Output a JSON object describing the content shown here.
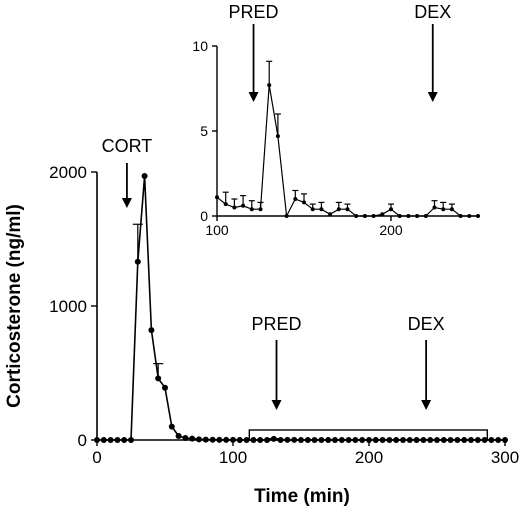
{
  "chart_data": [
    {
      "type": "line",
      "panel": "main",
      "xlabel": "Time (min)",
      "ylabel": "Corticosterone (ng/ml)",
      "xlim": [
        0,
        300
      ],
      "ylim": [
        0,
        2000
      ],
      "xticks": [
        "0",
        "100",
        "200",
        "300"
      ],
      "yticks": [
        "0",
        "1000",
        "2000"
      ],
      "grid": false,
      "series": [
        {
          "x": [
            0,
            5,
            10,
            15,
            20,
            25,
            30,
            35,
            40,
            45,
            50,
            55,
            60,
            65,
            70,
            75,
            80,
            85,
            90,
            95,
            100,
            105,
            110,
            115,
            120,
            125,
            130,
            135,
            140,
            145,
            150,
            155,
            160,
            165,
            170,
            175,
            180,
            185,
            190,
            195,
            200,
            205,
            210,
            215,
            220,
            225,
            230,
            235,
            240,
            245,
            250,
            255,
            260,
            265,
            270,
            275,
            280,
            285,
            290,
            295,
            300
          ],
          "y": [
            0,
            0,
            0,
            0,
            0,
            0,
            1330,
            1970,
            820,
            460,
            390,
            100,
            30,
            15,
            10,
            5,
            3,
            2,
            1,
            1,
            1,
            0,
            0,
            0,
            0,
            0,
            8,
            0,
            1,
            1,
            0,
            0,
            0,
            0,
            0,
            0,
            0,
            0,
            0,
            0,
            0,
            0,
            0,
            0,
            0,
            0,
            0,
            0,
            0,
            0,
            0,
            0,
            0,
            0,
            0,
            0,
            0,
            0,
            0,
            0,
            0
          ],
          "error": [
            0,
            0,
            0,
            0,
            0,
            0,
            280,
            0,
            0,
            110,
            0,
            0,
            0,
            0,
            0,
            0,
            0,
            0,
            0,
            0,
            0,
            0,
            0,
            0,
            0,
            0,
            2,
            0,
            0,
            0,
            0,
            0,
            0,
            0,
            0,
            0,
            0,
            0,
            0,
            0,
            0,
            0,
            0,
            0,
            0,
            0,
            0,
            0,
            0,
            0,
            0,
            0,
            0,
            0,
            0,
            0,
            0,
            0,
            0,
            0,
            0
          ]
        }
      ],
      "annotations": [
        {
          "label": "CORT",
          "x": 22
        },
        {
          "label": "PRED",
          "x": 132
        },
        {
          "label": "DEX",
          "x": 242
        }
      ]
    },
    {
      "type": "line",
      "panel": "inset",
      "xlim": [
        100,
        250
      ],
      "ylim": [
        0,
        10
      ],
      "xticks": [
        "100",
        "200"
      ],
      "yticks": [
        "0",
        "5",
        "10"
      ],
      "series": [
        {
          "x": [
            100,
            105,
            110,
            115,
            120,
            125,
            130,
            135,
            140,
            145,
            150,
            155,
            160,
            165,
            170,
            175,
            180,
            185,
            190,
            195,
            200,
            205,
            210,
            215,
            220,
            225,
            230,
            235,
            240,
            245,
            250
          ],
          "y": [
            1.1,
            0.7,
            0.5,
            0.6,
            0.4,
            0.4,
            7.7,
            4.7,
            0,
            1.0,
            0.8,
            0.4,
            0.4,
            0.1,
            0.4,
            0.4,
            0,
            0,
            0,
            0.1,
            0.4,
            0,
            0,
            0,
            0,
            0.5,
            0.4,
            0.4,
            0,
            0,
            0
          ],
          "error": [
            0,
            0.7,
            0.5,
            0.6,
            0.5,
            0.4,
            1.4,
            1.3,
            0,
            0.5,
            0.5,
            0.3,
            0.4,
            0,
            0.4,
            0.3,
            0,
            0,
            0,
            0,
            0.3,
            0,
            0,
            0,
            0,
            0.4,
            0.4,
            0.3,
            0,
            0,
            0
          ]
        }
      ],
      "annotations": [
        {
          "label": "PRED",
          "x": 121
        },
        {
          "label": "DEX",
          "x": 224
        }
      ]
    }
  ]
}
